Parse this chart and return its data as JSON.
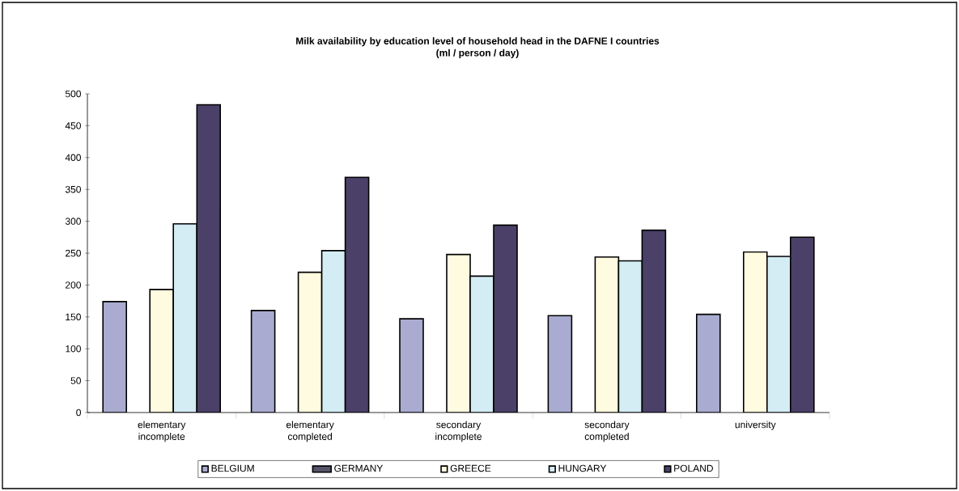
{
  "chart_data": {
    "type": "bar",
    "title": "Milk availability by education level of household head in the DAFNE I countries",
    "subtitle": "(ml / person / day)",
    "categories": [
      "elementary incomplete",
      "elementary completed",
      "secondary incomplete",
      "secondary completed",
      "university"
    ],
    "series": [
      {
        "name": "BELGIUM",
        "color": "#a9acd0",
        "values": [
          174,
          160,
          147,
          152,
          154
        ]
      },
      {
        "name": "GERMANY",
        "color": "#55556a",
        "values": [
          null,
          null,
          null,
          null,
          null
        ]
      },
      {
        "name": "GREECE",
        "color": "#fffbe0",
        "values": [
          193,
          220,
          248,
          244,
          252
        ]
      },
      {
        "name": "HUNGARY",
        "color": "#d4ecf4",
        "values": [
          296,
          254,
          214,
          238,
          245
        ]
      },
      {
        "name": "POLAND",
        "color": "#4a4068",
        "values": [
          483,
          369,
          294,
          286,
          275
        ]
      }
    ],
    "ylim": [
      0,
      500
    ],
    "yticks": [
      0,
      50,
      100,
      150,
      200,
      250,
      300,
      350,
      400,
      450,
      500
    ],
    "grid": false,
    "legend": "bottom"
  }
}
